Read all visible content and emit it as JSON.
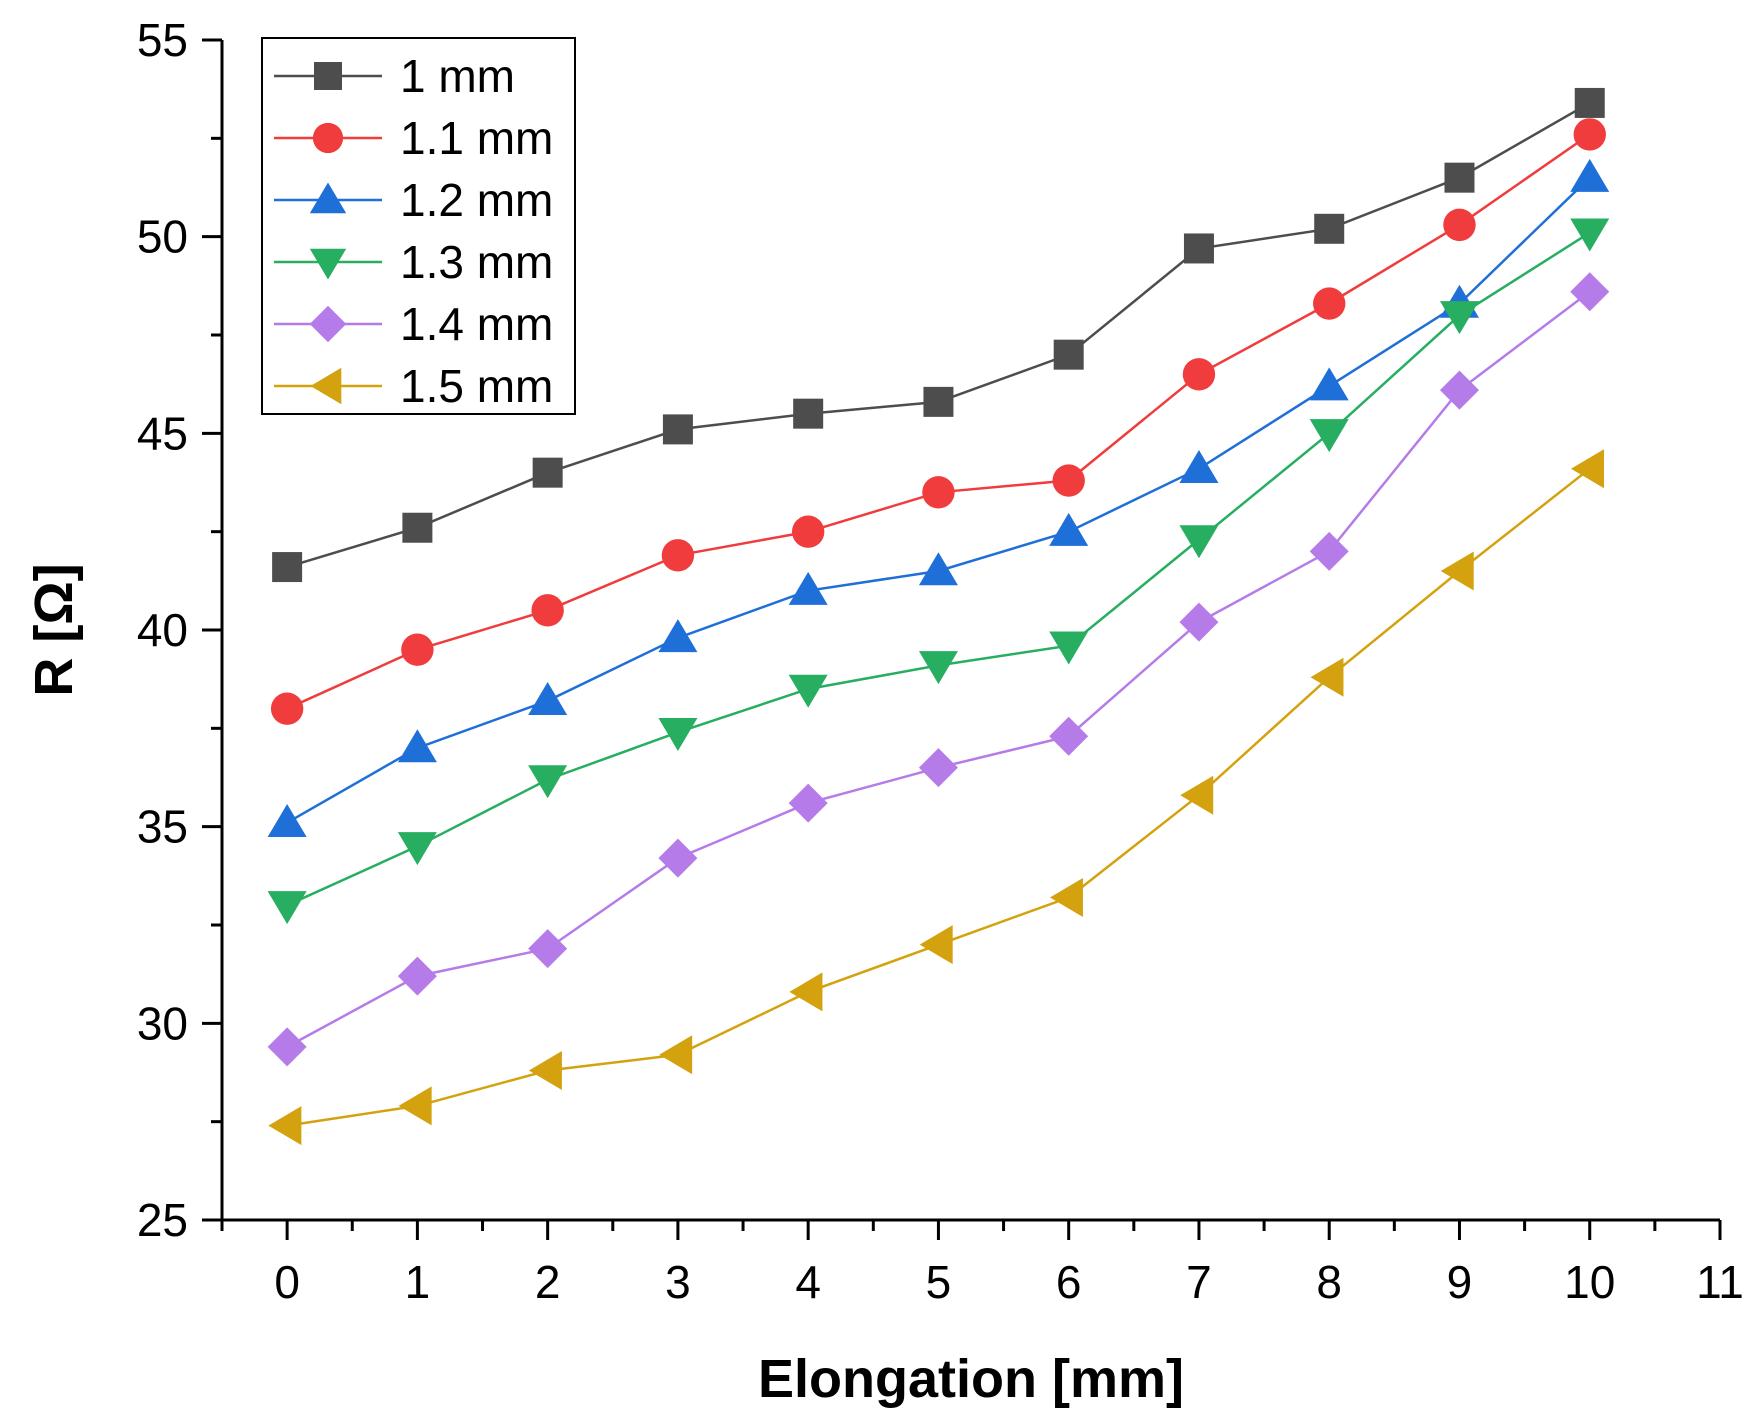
{
  "chart_data": {
    "type": "line",
    "title": "",
    "xlabel": "Elongation [mm]",
    "ylabel": "R [Ω]",
    "xlim": [
      -0.5,
      11
    ],
    "ylim": [
      25,
      55
    ],
    "xticks": [
      0,
      1,
      2,
      3,
      4,
      5,
      6,
      7,
      8,
      9,
      10,
      11
    ],
    "yticks": [
      25,
      30,
      35,
      40,
      45,
      50,
      55
    ],
    "grid": false,
    "legend_position": "top-left",
    "x": [
      0,
      1,
      2,
      3,
      4,
      5,
      6,
      7,
      8,
      9,
      10
    ],
    "series": [
      {
        "name": "1 mm",
        "color": "#4d4d4d",
        "marker": "square",
        "values": [
          41.6,
          42.6,
          44.0,
          45.1,
          45.5,
          45.8,
          47.0,
          49.7,
          50.2,
          51.5,
          53.4
        ]
      },
      {
        "name": "1.1 mm",
        "color": "#f03c3c",
        "marker": "circle",
        "values": [
          38.0,
          39.5,
          40.5,
          41.9,
          42.5,
          43.5,
          43.8,
          46.5,
          48.3,
          50.3,
          52.6
        ]
      },
      {
        "name": "1.2 mm",
        "color": "#1f6fd8",
        "marker": "triangle-up",
        "values": [
          35.1,
          37.0,
          38.2,
          39.8,
          41.0,
          41.5,
          42.5,
          44.1,
          46.2,
          48.3,
          51.5
        ]
      },
      {
        "name": "1.3 mm",
        "color": "#27ae60",
        "marker": "triangle-down",
        "values": [
          33.0,
          34.5,
          36.2,
          37.4,
          38.5,
          39.1,
          39.6,
          42.3,
          45.0,
          48.0,
          50.1
        ]
      },
      {
        "name": "1.4 mm",
        "color": "#b57be8",
        "marker": "diamond",
        "values": [
          29.4,
          31.2,
          31.9,
          34.2,
          35.6,
          36.5,
          37.3,
          40.2,
          42.0,
          46.1,
          48.6
        ]
      },
      {
        "name": "1.5 mm",
        "color": "#d4a20e",
        "marker": "triangle-left",
        "values": [
          27.4,
          27.9,
          28.8,
          29.2,
          30.8,
          32.0,
          33.2,
          35.8,
          38.8,
          41.5,
          44.1
        ]
      }
    ]
  }
}
